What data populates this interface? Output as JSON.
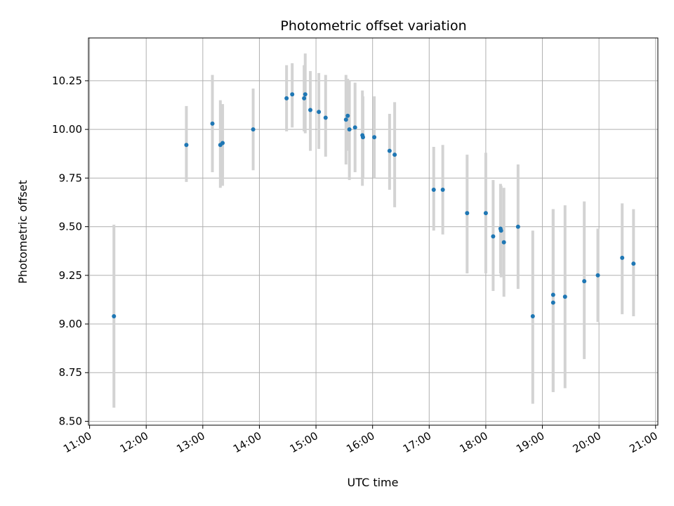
{
  "chart_data": {
    "type": "scatter",
    "title": "Photometric offset variation",
    "xlabel": "UTC time",
    "ylabel": "Photometric offset",
    "x_unit": "hour",
    "xlim": [
      10.98,
      21.04
    ],
    "ylim": [
      8.48,
      10.47
    ],
    "x_ticks": [
      11,
      12,
      13,
      14,
      15,
      16,
      17,
      18,
      19,
      20,
      21
    ],
    "x_tick_labels": [
      "11:00",
      "12:00",
      "13:00",
      "14:00",
      "15:00",
      "16:00",
      "17:00",
      "18:00",
      "19:00",
      "20:00",
      "21:00"
    ],
    "y_ticks": [
      8.5,
      8.75,
      9.0,
      9.25,
      9.5,
      9.75,
      10.0,
      10.25
    ],
    "y_tick_labels": [
      "8.50",
      "8.75",
      "9.00",
      "9.25",
      "9.50",
      "9.75",
      "10.00",
      "10.25"
    ],
    "grid": true,
    "marker_color": "#1f77b4",
    "errorbar_color": "#d3d3d3",
    "points": [
      {
        "x": 11.43,
        "y": 9.04,
        "lo": 8.57,
        "hi": 9.51
      },
      {
        "x": 12.71,
        "y": 9.92,
        "lo": 9.73,
        "hi": 10.12
      },
      {
        "x": 13.17,
        "y": 10.03,
        "lo": 9.78,
        "hi": 10.28
      },
      {
        "x": 13.31,
        "y": 9.92,
        "lo": 9.7,
        "hi": 10.15
      },
      {
        "x": 13.35,
        "y": 9.93,
        "lo": 9.71,
        "hi": 10.13
      },
      {
        "x": 13.89,
        "y": 10.0,
        "lo": 9.79,
        "hi": 10.21
      },
      {
        "x": 14.48,
        "y": 10.16,
        "lo": 9.99,
        "hi": 10.33
      },
      {
        "x": 14.58,
        "y": 10.18,
        "lo": 10.01,
        "hi": 10.34
      },
      {
        "x": 14.79,
        "y": 10.16,
        "lo": 9.99,
        "hi": 10.33
      },
      {
        "x": 14.81,
        "y": 10.18,
        "lo": 9.98,
        "hi": 10.39
      },
      {
        "x": 14.9,
        "y": 10.1,
        "lo": 9.89,
        "hi": 10.3
      },
      {
        "x": 15.05,
        "y": 10.09,
        "lo": 9.9,
        "hi": 10.29
      },
      {
        "x": 15.17,
        "y": 10.06,
        "lo": 9.86,
        "hi": 10.28
      },
      {
        "x": 15.53,
        "y": 10.05,
        "lo": 9.82,
        "hi": 10.28
      },
      {
        "x": 15.56,
        "y": 10.07,
        "lo": 9.89,
        "hi": 10.26
      },
      {
        "x": 15.59,
        "y": 10.0,
        "lo": 9.74,
        "hi": 10.25
      },
      {
        "x": 15.69,
        "y": 10.01,
        "lo": 9.78,
        "hi": 10.24
      },
      {
        "x": 15.82,
        "y": 9.97,
        "lo": 9.71,
        "hi": 10.2
      },
      {
        "x": 15.83,
        "y": 9.96,
        "lo": 9.75,
        "hi": 10.17
      },
      {
        "x": 16.03,
        "y": 9.96,
        "lo": 9.75,
        "hi": 10.17
      },
      {
        "x": 16.3,
        "y": 9.89,
        "lo": 9.69,
        "hi": 10.08
      },
      {
        "x": 16.39,
        "y": 9.87,
        "lo": 9.6,
        "hi": 10.14
      },
      {
        "x": 17.08,
        "y": 9.69,
        "lo": 9.48,
        "hi": 9.91
      },
      {
        "x": 17.24,
        "y": 9.69,
        "lo": 9.46,
        "hi": 9.92
      },
      {
        "x": 17.67,
        "y": 9.57,
        "lo": 9.26,
        "hi": 9.87
      },
      {
        "x": 18.0,
        "y": 9.57,
        "lo": 9.26,
        "hi": 9.88
      },
      {
        "x": 18.13,
        "y": 9.45,
        "lo": 9.17,
        "hi": 9.74
      },
      {
        "x": 18.26,
        "y": 9.49,
        "lo": 9.26,
        "hi": 9.72
      },
      {
        "x": 18.27,
        "y": 9.48,
        "lo": 9.24,
        "hi": 9.71
      },
      {
        "x": 18.32,
        "y": 9.42,
        "lo": 9.14,
        "hi": 9.7
      },
      {
        "x": 18.57,
        "y": 9.5,
        "lo": 9.18,
        "hi": 9.82
      },
      {
        "x": 18.83,
        "y": 9.04,
        "lo": 8.59,
        "hi": 9.48
      },
      {
        "x": 19.19,
        "y": 9.15,
        "lo": 8.65,
        "hi": 9.59
      },
      {
        "x": 19.19,
        "y": 9.11,
        "lo": 8.65,
        "hi": 9.59
      },
      {
        "x": 19.4,
        "y": 9.14,
        "lo": 8.67,
        "hi": 9.61
      },
      {
        "x": 19.74,
        "y": 9.22,
        "lo": 8.82,
        "hi": 9.63
      },
      {
        "x": 19.98,
        "y": 9.25,
        "lo": 9.01,
        "hi": 9.49
      },
      {
        "x": 20.41,
        "y": 9.34,
        "lo": 9.05,
        "hi": 9.62
      },
      {
        "x": 20.61,
        "y": 9.31,
        "lo": 9.04,
        "hi": 9.59
      }
    ]
  }
}
